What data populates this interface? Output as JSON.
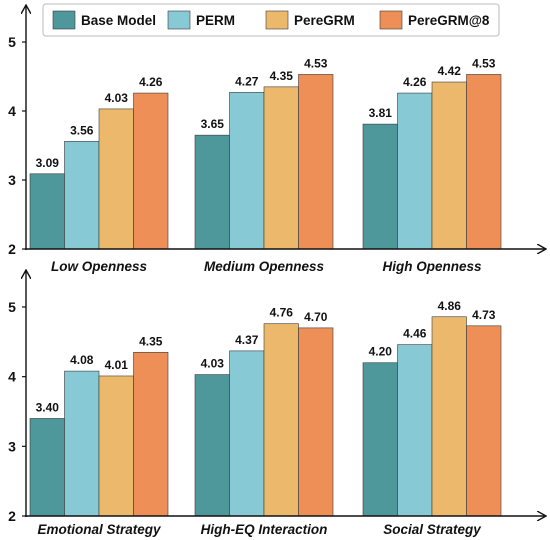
{
  "chart_data": {
    "type": "bar",
    "legend": {
      "placement": "top",
      "entries": [
        "Base Model",
        "PERM",
        "PereGRM",
        "PereGRM@8"
      ]
    },
    "colors": [
      "#4e979a",
      "#88c9d6",
      "#ecb96c",
      "#ee8f58"
    ],
    "panels": [
      {
        "categories": [
          "Low Openness",
          "Medium Openness",
          "High Openness"
        ],
        "ylim": [
          2,
          5
        ],
        "yticks": [
          "2",
          "3",
          "4",
          "5"
        ],
        "series": [
          {
            "name": "Base Model",
            "values": [
              3.09,
              3.65,
              3.81
            ],
            "labels": [
              "3.09",
              "3.65",
              "3.81"
            ]
          },
          {
            "name": "PERM",
            "values": [
              3.56,
              4.27,
              4.26
            ],
            "labels": [
              "3.56",
              "4.27",
              "4.26"
            ]
          },
          {
            "name": "PereGRM",
            "values": [
              4.03,
              4.35,
              4.42
            ],
            "labels": [
              "4.03",
              "4.35",
              "4.42"
            ]
          },
          {
            "name": "PereGRM@8",
            "values": [
              4.26,
              4.53,
              4.53
            ],
            "labels": [
              "4.26",
              "4.53",
              "4.53"
            ]
          }
        ]
      },
      {
        "categories": [
          "Emotional Strategy",
          "High-EQ Interaction",
          "Social Strategy"
        ],
        "ylim": [
          2,
          5
        ],
        "yticks": [
          "2",
          "3",
          "4",
          "5"
        ],
        "series": [
          {
            "name": "Base Model",
            "values": [
              3.4,
              4.03,
              4.2
            ],
            "labels": [
              "3.40",
              "4.03",
              "4.20"
            ]
          },
          {
            "name": "PERM",
            "values": [
              4.08,
              4.37,
              4.46
            ],
            "labels": [
              "4.08",
              "4.37",
              "4.46"
            ]
          },
          {
            "name": "PereGRM",
            "values": [
              4.01,
              4.76,
              4.86
            ],
            "labels": [
              "4.01",
              "4.76",
              "4.86"
            ]
          },
          {
            "name": "PereGRM@8",
            "values": [
              4.35,
              4.7,
              4.73
            ],
            "labels": [
              "4.35",
              "4.70",
              "4.73"
            ]
          }
        ]
      }
    ],
    "grid": false
  }
}
